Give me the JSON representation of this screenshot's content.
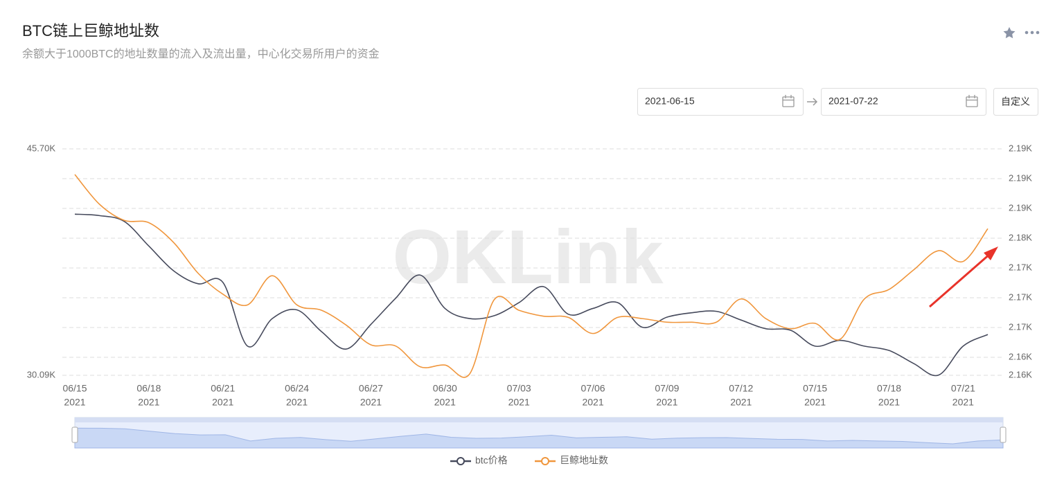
{
  "header": {
    "title": "BTC链上巨鲸地址数",
    "subtitle": "余额大于1000BTC的地址数量的流入及流出量，中心化交易所用户的资金"
  },
  "date_range": {
    "start": "2021-06-15",
    "end": "2021-07-22",
    "button": "自定义"
  },
  "watermark": "OKLink",
  "chart_data": {
    "type": "line",
    "year": "2021",
    "categories": [
      "06/15",
      null,
      null,
      "06/18",
      null,
      null,
      "06/21",
      null,
      null,
      "06/24",
      null,
      null,
      "06/27",
      null,
      null,
      "06/30",
      null,
      null,
      "07/03",
      null,
      null,
      "07/06",
      null,
      null,
      "07/09",
      null,
      null,
      "07/12",
      null,
      null,
      "07/15",
      null,
      null,
      "07/18",
      null,
      null,
      "07/21",
      null
    ],
    "series": [
      {
        "name": "btc价格",
        "color": "#464a5c",
        "axis": "y",
        "values": [
          41200,
          41100,
          40700,
          39000,
          37300,
          36400,
          36500,
          32100,
          34000,
          34600,
          33100,
          31900,
          33600,
          35400,
          37000,
          34700,
          34000,
          34200,
          35100,
          36200,
          34300,
          34700,
          35100,
          33400,
          34100,
          34400,
          34500,
          33900,
          33300,
          33200,
          32100,
          32500,
          32100,
          31800,
          30900,
          30100,
          32100,
          32900
        ]
      },
      {
        "name": "巨鲸地址数",
        "color": "#f0963c",
        "axis": "y2",
        "values": [
          2190.7,
          2185.7,
          2183.0,
          2182.6,
          2179.3,
          2174.1,
          2170.6,
          2168.8,
          2173.7,
          2168.8,
          2167.9,
          2165.4,
          2162.1,
          2161.9,
          2158.4,
          2158.7,
          2157.2,
          2169.7,
          2167.9,
          2166.9,
          2166.7,
          2164.0,
          2166.7,
          2166.5,
          2165.9,
          2165.9,
          2165.9,
          2169.8,
          2166.5,
          2164.8,
          2165.7,
          2163.0,
          2169.8,
          2171.4,
          2174.7,
          2177.9,
          2176.1,
          2181.6
        ]
      }
    ],
    "ylim": [
      30090,
      45700
    ],
    "yticks": [
      {
        "value": 30090,
        "label": "30.09K"
      },
      {
        "value": 45700,
        "label": "45.70K"
      }
    ],
    "y2lim": [
      2156.98,
      2195
    ],
    "y2ticks": [
      {
        "value": 2156.98,
        "label": "2.16K"
      },
      {
        "value": 2160,
        "label": "2.16K"
      },
      {
        "value": 2165,
        "label": "2.17K"
      },
      {
        "value": 2170,
        "label": "2.17K"
      },
      {
        "value": 2175,
        "label": "2.17K"
      },
      {
        "value": 2180,
        "label": "2.18K"
      },
      {
        "value": 2185,
        "label": "2.19K"
      },
      {
        "value": 2190,
        "label": "2.19K"
      },
      {
        "value": 2195,
        "label": "2.19K"
      }
    ],
    "grid": true
  }
}
